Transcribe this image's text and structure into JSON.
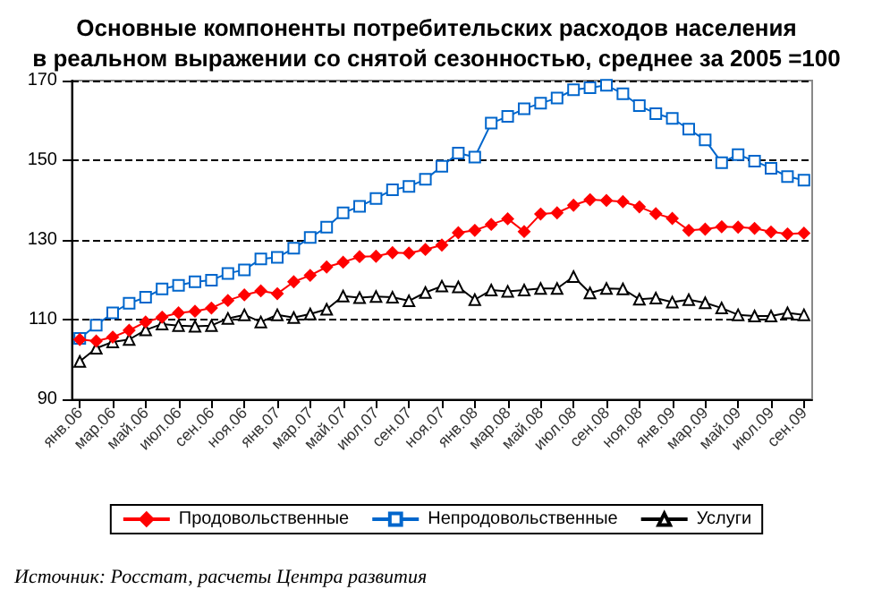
{
  "chart_data": {
    "type": "line",
    "title": "Основные компоненты потребительских расходов населения\nв реальном выражении со снятой сезонностью, среднее за 2005 =100",
    "categories": [
      "янв.06",
      null,
      "мар.06",
      null,
      "май.06",
      null,
      "июл.06",
      null,
      "сен.06",
      null,
      "ноя.06",
      null,
      "янв.07",
      null,
      "мар.07",
      null,
      "май.07",
      null,
      "июл.07",
      null,
      "сен.07",
      null,
      "ноя.07",
      null,
      "янв.08",
      null,
      "мар.08",
      null,
      "май.08",
      null,
      "июл.08",
      null,
      "сен.08",
      null,
      "ноя.08",
      null,
      "янв.09",
      null,
      "мар.09",
      null,
      "май.09",
      null,
      "июл.09",
      null,
      "сен.09"
    ],
    "series": [
      {
        "name": "Продовольственные",
        "color": "#ff0000",
        "marker": "diamond",
        "values": [
          105.0,
          104.6,
          105.6,
          107.3,
          109.4,
          110.6,
          111.7,
          112.1,
          112.9,
          114.8,
          116.2,
          117.2,
          116.5,
          119.5,
          121.1,
          123.2,
          124.4,
          125.8,
          125.9,
          126.8,
          126.7,
          127.6,
          128.7,
          131.8,
          132.4,
          133.9,
          135.3,
          132.1,
          136.5,
          136.8,
          138.7,
          140.1,
          139.9,
          139.6,
          138.3,
          136.6,
          135.4,
          132.4,
          132.7,
          133.3,
          133.2,
          132.9,
          132.0,
          131.5,
          131.7
        ]
      },
      {
        "name": "Непродовольственные",
        "color": "#0066cc",
        "marker": "square",
        "values": [
          105.3,
          108.6,
          111.7,
          114.1,
          115.6,
          117.7,
          118.6,
          119.5,
          119.9,
          121.6,
          122.5,
          125.2,
          125.6,
          127.9,
          130.6,
          133.2,
          136.8,
          138.4,
          140.4,
          142.6,
          143.4,
          145.2,
          148.5,
          151.8,
          150.8,
          159.3,
          161.0,
          162.9,
          164.3,
          165.6,
          167.7,
          168.2,
          168.8,
          166.7,
          163.7,
          161.7,
          160.5,
          157.8,
          155.1,
          149.4,
          151.4,
          149.8,
          148.0,
          145.9,
          145.0
        ]
      },
      {
        "name": "Услуги",
        "color": "#000000",
        "marker": "triangle",
        "values": [
          99.5,
          102.8,
          104.4,
          105.0,
          107.4,
          108.9,
          108.5,
          108.3,
          108.5,
          110.3,
          111.2,
          109.4,
          111.2,
          110.5,
          111.4,
          112.6,
          115.9,
          115.5,
          115.8,
          115.6,
          114.7,
          116.8,
          118.4,
          118.2,
          115.0,
          117.4,
          117.1,
          117.4,
          117.8,
          117.8,
          120.8,
          116.7,
          117.8,
          117.7,
          115.1,
          115.4,
          114.4,
          115.0,
          114.2,
          112.9,
          111.2,
          110.9,
          110.9,
          111.7,
          111.2
        ]
      }
    ],
    "ylim": [
      90,
      170
    ],
    "yticks": [
      90,
      110,
      130,
      150,
      170
    ],
    "grid": "y",
    "legend": "bottom",
    "line_style": "solid",
    "annotations": [
      "Источник: Росстат, расчеты Центра развития"
    ]
  }
}
